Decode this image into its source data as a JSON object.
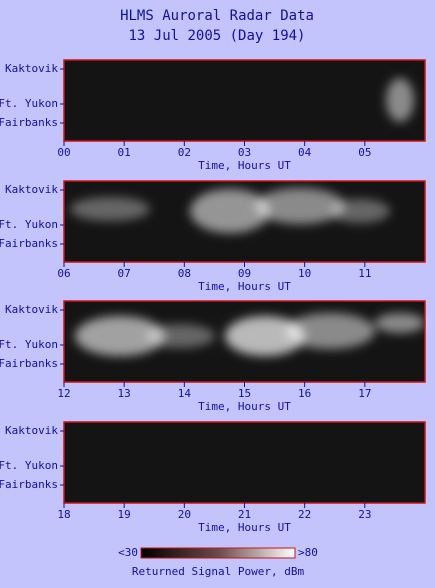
{
  "title": [
    "HLMS Auroral Radar Data",
    "13 Jul 2005 (Day 194)"
  ],
  "chart_data": [
    {
      "type": "heatmap",
      "xlabel": "Time, Hours UT",
      "xlim": [
        0,
        6
      ],
      "xticks": [
        {
          "value": 0,
          "label": "00"
        },
        {
          "value": 1,
          "label": "01"
        },
        {
          "value": 2,
          "label": "02"
        },
        {
          "value": 3,
          "label": "03"
        },
        {
          "value": 4,
          "label": "04"
        },
        {
          "value": 5,
          "label": "05"
        }
      ],
      "stations": [
        "Kaktovik",
        "Ft. Yukon",
        "Fairbanks"
      ]
    },
    {
      "type": "heatmap",
      "xlabel": "Time, Hours UT",
      "xlim": [
        6,
        12
      ],
      "xticks": [
        {
          "value": 6,
          "label": "06"
        },
        {
          "value": 7,
          "label": "07"
        },
        {
          "value": 8,
          "label": "08"
        },
        {
          "value": 9,
          "label": "09"
        },
        10,
        11
      ],
      "stations": [
        "Kaktovik",
        "Ft. Yukon",
        "Fairbanks"
      ]
    },
    {
      "type": "heatmap",
      "xlabel": "Time, Hours UT",
      "xlim": [
        12,
        18
      ],
      "xticks": [
        12,
        13,
        14,
        15,
        16,
        17
      ],
      "stations": [
        "Kaktovik",
        "Ft. Yukon",
        "Fairbanks"
      ]
    },
    {
      "type": "heatmap",
      "xlabel": "Time, Hours UT",
      "xlim": [
        18,
        24
      ],
      "xticks": [
        18,
        19,
        20,
        21,
        22,
        23
      ],
      "stations": [
        "Kaktovik",
        "Ft. Yukon",
        "Fairbanks"
      ]
    }
  ],
  "colorbar": {
    "label": "Returned Signal Power, dBm",
    "lim": [
      30,
      80
    ],
    "ticks": [
      {
        "value": 30,
        "label": "<30"
      },
      {
        "value": 80,
        "label": ">80"
      }
    ]
  }
}
